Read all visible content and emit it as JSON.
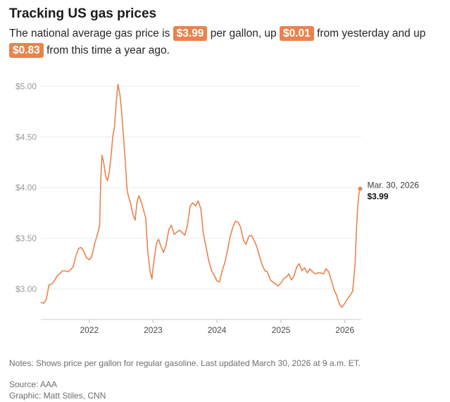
{
  "header": {
    "title": "Tracking US gas prices",
    "sub_1": "The national average gas price is ",
    "price": "$3.99",
    "sub_2": " per gallon, up ",
    "day_change": "$0.01",
    "sub_3": " from yesterday and up ",
    "year_change": "$0.83",
    "sub_4": " from this time a year ago."
  },
  "chart_data": {
    "type": "line",
    "title": "",
    "xlabel": "",
    "ylabel": "",
    "ylim": [
      2.7,
      5.1
    ],
    "xlim": [
      "2021-03-30",
      "2026-04-05"
    ],
    "y_ticks": [
      {
        "value": 3.0,
        "label": "$3.00"
      },
      {
        "value": 3.5,
        "label": "$3.50"
      },
      {
        "value": 4.0,
        "label": "$4.00"
      },
      {
        "value": 4.5,
        "label": "$4.50"
      },
      {
        "value": 5.0,
        "label": "$5.00"
      }
    ],
    "x_ticks": [
      {
        "value": "2022-01-01",
        "label": "2022"
      },
      {
        "value": "2023-01-01",
        "label": "2023"
      },
      {
        "value": "2024-01-01",
        "label": "2024"
      },
      {
        "value": "2025-01-01",
        "label": "2025"
      },
      {
        "value": "2026-01-01",
        "label": "2026"
      }
    ],
    "grid": true,
    "line_color": "#e8834e",
    "series": [
      {
        "x": [
          "2021-03-30",
          "2021-04-15",
          "2021-05-01",
          "2021-05-15",
          "2021-06-01",
          "2021-06-15",
          "2021-07-01",
          "2021-07-15",
          "2021-08-01",
          "2021-08-15",
          "2021-09-01",
          "2021-09-15",
          "2021-10-01",
          "2021-10-15",
          "2021-11-01",
          "2021-11-15",
          "2021-12-01",
          "2021-12-15",
          "2022-01-01",
          "2022-01-15",
          "2022-02-01",
          "2022-02-15",
          "2022-03-01",
          "2022-03-08",
          "2022-03-15",
          "2022-03-25",
          "2022-04-05",
          "2022-04-15",
          "2022-04-25",
          "2022-05-05",
          "2022-05-15",
          "2022-05-25",
          "2022-06-05",
          "2022-06-14",
          "2022-06-25",
          "2022-07-05",
          "2022-07-15",
          "2022-07-25",
          "2022-08-05",
          "2022-08-15",
          "2022-08-25",
          "2022-09-05",
          "2022-09-20",
          "2022-10-01",
          "2022-10-12",
          "2022-10-25",
          "2022-11-05",
          "2022-11-20",
          "2022-12-01",
          "2022-12-15",
          "2022-12-25",
          "2023-01-05",
          "2023-01-20",
          "2023-02-01",
          "2023-02-15",
          "2023-03-01",
          "2023-03-15",
          "2023-04-01",
          "2023-04-15",
          "2023-05-01",
          "2023-05-15",
          "2023-06-01",
          "2023-06-15",
          "2023-07-01",
          "2023-07-15",
          "2023-08-01",
          "2023-08-15",
          "2023-09-01",
          "2023-09-15",
          "2023-10-01",
          "2023-10-15",
          "2023-11-01",
          "2023-11-15",
          "2023-12-01",
          "2023-12-15",
          "2024-01-01",
          "2024-01-15",
          "2024-02-01",
          "2024-02-15",
          "2024-03-01",
          "2024-03-15",
          "2024-04-01",
          "2024-04-15",
          "2024-05-01",
          "2024-05-15",
          "2024-06-01",
          "2024-06-15",
          "2024-07-01",
          "2024-07-15",
          "2024-08-01",
          "2024-08-15",
          "2024-09-01",
          "2024-09-15",
          "2024-10-01",
          "2024-10-15",
          "2024-11-01",
          "2024-11-15",
          "2024-12-01",
          "2024-12-15",
          "2025-01-01",
          "2025-01-15",
          "2025-02-01",
          "2025-02-15",
          "2025-03-01",
          "2025-03-15",
          "2025-04-01",
          "2025-04-15",
          "2025-05-01",
          "2025-05-15",
          "2025-06-01",
          "2025-06-15",
          "2025-07-01",
          "2025-07-15",
          "2025-08-01",
          "2025-08-15",
          "2025-09-01",
          "2025-09-15",
          "2025-10-01",
          "2025-10-15",
          "2025-11-01",
          "2025-11-15",
          "2025-12-01",
          "2025-12-15",
          "2026-01-01",
          "2026-01-15",
          "2026-02-01",
          "2026-02-15",
          "2026-03-01",
          "2026-03-08",
          "2026-03-15",
          "2026-03-22",
          "2026-03-30"
        ],
        "y": [
          2.87,
          2.86,
          2.9,
          3.04,
          3.05,
          3.08,
          3.13,
          3.15,
          3.18,
          3.18,
          3.17,
          3.19,
          3.22,
          3.32,
          3.4,
          3.41,
          3.37,
          3.31,
          3.29,
          3.32,
          3.45,
          3.53,
          3.62,
          4.1,
          4.32,
          4.24,
          4.11,
          4.07,
          4.15,
          4.3,
          4.5,
          4.6,
          4.86,
          5.02,
          4.92,
          4.75,
          4.52,
          4.28,
          3.98,
          3.9,
          3.85,
          3.75,
          3.68,
          3.86,
          3.92,
          3.86,
          3.79,
          3.7,
          3.38,
          3.17,
          3.1,
          3.27,
          3.45,
          3.49,
          3.42,
          3.36,
          3.43,
          3.59,
          3.63,
          3.54,
          3.56,
          3.58,
          3.56,
          3.53,
          3.62,
          3.82,
          3.85,
          3.82,
          3.87,
          3.79,
          3.55,
          3.4,
          3.28,
          3.18,
          3.14,
          3.08,
          3.07,
          3.19,
          3.26,
          3.38,
          3.51,
          3.61,
          3.67,
          3.66,
          3.61,
          3.48,
          3.44,
          3.52,
          3.53,
          3.48,
          3.42,
          3.32,
          3.24,
          3.18,
          3.17,
          3.09,
          3.07,
          3.05,
          3.03,
          3.06,
          3.1,
          3.12,
          3.15,
          3.09,
          3.12,
          3.22,
          3.25,
          3.18,
          3.21,
          3.16,
          3.2,
          3.17,
          3.15,
          3.16,
          3.16,
          3.15,
          3.2,
          3.17,
          3.09,
          2.99,
          2.94,
          2.85,
          2.82,
          2.86,
          2.9,
          2.94,
          2.98,
          3.25,
          3.56,
          3.8,
          3.93,
          3.99
        ]
      }
    ],
    "end_label": {
      "date": "Mar. 30, 2026",
      "value": "$3.99"
    }
  },
  "footer": {
    "notes": "Notes: Shows price per gallon for regular gasoline. Last updated March 30, 2026 at 9 a.m. ET.",
    "source": "Source: AAA",
    "graphic": "Graphic: Matt Stiles, CNN"
  }
}
